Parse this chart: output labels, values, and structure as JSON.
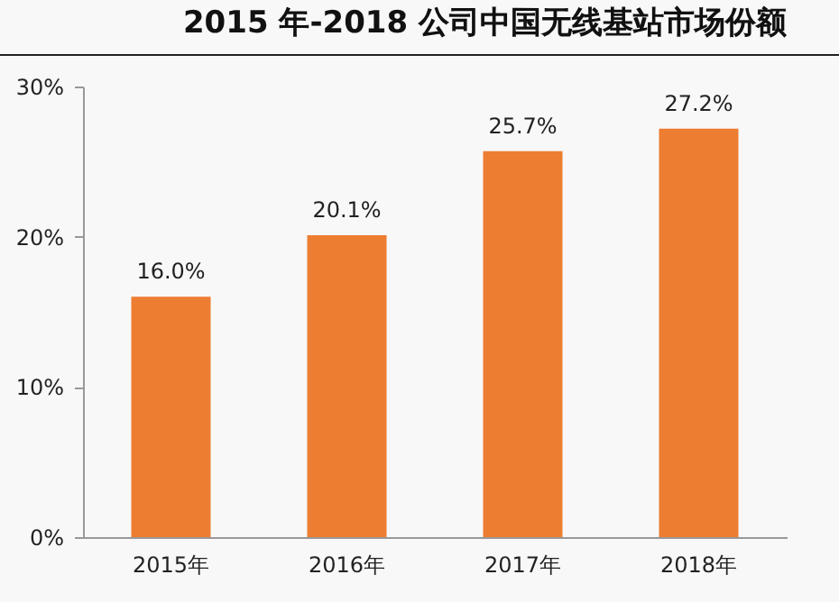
{
  "chart_data": {
    "type": "bar",
    "title": "2015 年-2018 公司中国无线基站市场份额",
    "categories": [
      "2015年",
      "2016年",
      "2017年",
      "2018年"
    ],
    "values": [
      16.0,
      20.1,
      25.7,
      27.2
    ],
    "value_labels": [
      "16.0%",
      "20.1%",
      "25.7%",
      "27.2%"
    ],
    "color": "#ed7d31",
    "ylim": [
      0,
      30
    ],
    "yticks": [
      {
        "value": 0,
        "label": "0%"
      },
      {
        "value": 10,
        "label": "10%"
      },
      {
        "value": 20,
        "label": "20%"
      },
      {
        "value": 30,
        "label": "30%"
      }
    ],
    "grid": false
  }
}
